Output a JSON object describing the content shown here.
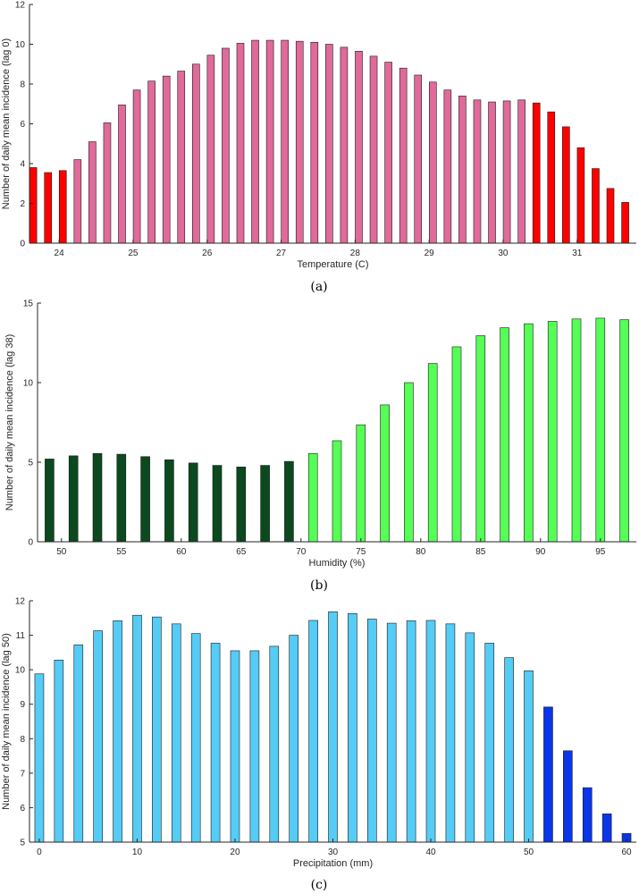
{
  "chart_data": [
    {
      "type": "bar",
      "panel_label": "(a)",
      "xlabel": "Temperature (C)",
      "ylabel": "Number of daily mean incidence (lag 0)",
      "xlim": [
        23.6,
        31.8
      ],
      "ylim": [
        0,
        12
      ],
      "xticks": [
        24,
        25,
        26,
        27,
        28,
        29,
        30,
        31
      ],
      "yticks": [
        0,
        2,
        4,
        6,
        8,
        10,
        12
      ],
      "colors": {
        "normal": "#e06a9a",
        "highlight": "#ff0000"
      },
      "x0": 23.65,
      "dx": 0.2,
      "values": [
        3.8,
        3.55,
        3.65,
        4.2,
        5.1,
        6.05,
        6.95,
        7.7,
        8.15,
        8.4,
        8.65,
        9.0,
        9.45,
        9.8,
        10.05,
        10.2,
        10.2,
        10.2,
        10.15,
        10.1,
        10.0,
        9.85,
        9.65,
        9.4,
        9.1,
        8.8,
        8.45,
        8.1,
        7.7,
        7.4,
        7.2,
        7.1,
        7.15,
        7.2,
        7.05,
        6.6,
        5.85,
        4.8,
        3.75,
        2.75,
        2.05
      ],
      "highlight": [
        true,
        true,
        true,
        false,
        false,
        false,
        false,
        false,
        false,
        false,
        false,
        false,
        false,
        false,
        false,
        false,
        false,
        false,
        false,
        false,
        false,
        false,
        false,
        false,
        false,
        false,
        false,
        false,
        false,
        false,
        false,
        false,
        false,
        false,
        true,
        true,
        true,
        true,
        true,
        true,
        true
      ]
    },
    {
      "type": "bar",
      "panel_label": "(b)",
      "xlabel": "Humidity (%)",
      "ylabel": "Number of daily mean incidence (lag 38)",
      "xlim": [
        48,
        98
      ],
      "ylim": [
        0,
        15
      ],
      "xticks": [
        50,
        55,
        60,
        65,
        70,
        75,
        80,
        85,
        90,
        95
      ],
      "yticks": [
        0,
        5,
        10,
        15
      ],
      "colors": {
        "normal": "#55ff55",
        "highlight": "#0a4a1e"
      },
      "x0": 49,
      "dx": 2,
      "values": [
        5.2,
        5.4,
        5.55,
        5.5,
        5.35,
        5.15,
        4.95,
        4.8,
        4.7,
        4.8,
        5.05,
        5.55,
        6.35,
        7.35,
        8.6,
        10.0,
        11.2,
        12.25,
        12.95,
        13.45,
        13.7,
        13.85,
        14.0,
        14.05,
        13.95
      ],
      "highlight": [
        true,
        true,
        true,
        true,
        true,
        true,
        true,
        true,
        true,
        true,
        true,
        false,
        false,
        false,
        false,
        false,
        false,
        false,
        false,
        false,
        false,
        false,
        false,
        false,
        false
      ]
    },
    {
      "type": "bar",
      "panel_label": "(c)",
      "xlabel": "Precipitation (mm)",
      "ylabel": "Number of daily mean incidence (lag 50)",
      "xlim": [
        -1,
        61
      ],
      "ylim": [
        5,
        12
      ],
      "xticks": [
        0,
        10,
        20,
        30,
        40,
        50,
        60
      ],
      "yticks": [
        5,
        6,
        7,
        8,
        9,
        10,
        11,
        12
      ],
      "colors": {
        "normal": "#55ccf5",
        "highlight": "#0a35e8"
      },
      "x0": 0,
      "dx": 2,
      "values": [
        9.88,
        10.28,
        10.72,
        11.13,
        11.42,
        11.58,
        11.53,
        11.33,
        11.05,
        10.77,
        10.55,
        10.55,
        10.68,
        11.0,
        11.43,
        11.68,
        11.63,
        11.47,
        11.35,
        11.42,
        11.43,
        11.33,
        11.07,
        10.77,
        10.35,
        9.97,
        8.92,
        7.65,
        6.58,
        5.82,
        5.25
      ],
      "highlight": [
        false,
        false,
        false,
        false,
        false,
        false,
        false,
        false,
        false,
        false,
        false,
        false,
        false,
        false,
        false,
        false,
        false,
        false,
        false,
        false,
        false,
        false,
        false,
        false,
        false,
        false,
        true,
        true,
        true,
        true,
        true
      ]
    }
  ]
}
